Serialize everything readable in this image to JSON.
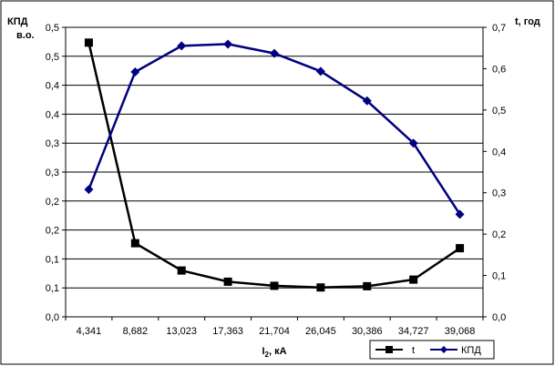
{
  "chart_data": {
    "type": "line",
    "categories": [
      "4,341",
      "8,682",
      "13,023",
      "17,363",
      "21,704",
      "26,045",
      "30,386",
      "34,727",
      "39,068"
    ],
    "y_left": {
      "label_line1": "КПД",
      "label_line2": "в.о.",
      "ticks": [
        "0,0",
        "0,1",
        "0,1",
        "0,2",
        "0,2",
        "0,3",
        "0,3",
        "0,4",
        "0,4",
        "0,5",
        "0,5"
      ],
      "range": [
        0,
        0.5
      ]
    },
    "y_right": {
      "label": "t, год",
      "ticks": [
        "0,0",
        "0,1",
        "0,2",
        "0,3",
        "0,4",
        "0,5",
        "0,6",
        "0,7"
      ],
      "range": [
        0,
        0.7
      ]
    },
    "xlabel_main": "I",
    "xlabel_sub": "2",
    "xlabel_rest": ", кА",
    "series": [
      {
        "name": "t",
        "axis": "right",
        "color": "#000000",
        "marker": "square",
        "values": [
          0.663,
          0.178,
          0.112,
          0.085,
          0.075,
          0.071,
          0.074,
          0.09,
          0.166
        ]
      },
      {
        "name": "КПД",
        "axis": "left",
        "color": "#000080",
        "marker": "diamond",
        "values": [
          0.22,
          0.423,
          0.468,
          0.471,
          0.455,
          0.424,
          0.373,
          0.3,
          0.177
        ]
      }
    ],
    "grid": true,
    "legend_position": "bottom-right"
  }
}
